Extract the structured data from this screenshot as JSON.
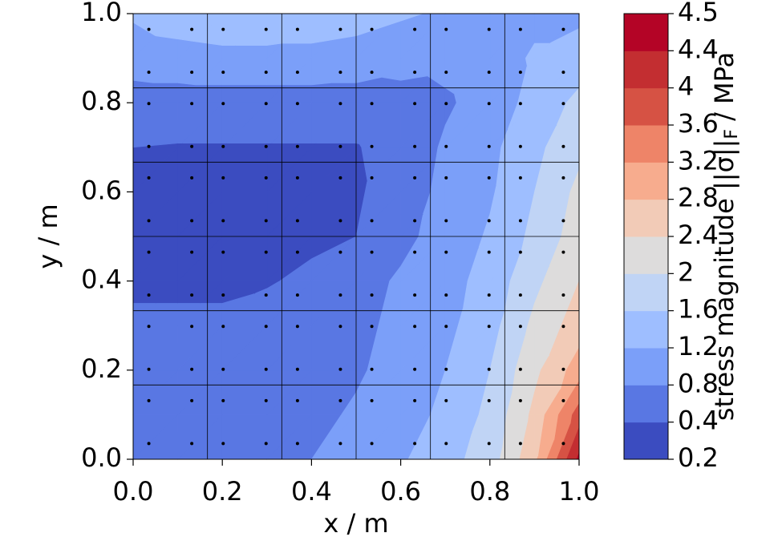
{
  "chart_data": {
    "type": "contour",
    "xlabel": "x / m",
    "ylabel": "y / m",
    "colorbar_label": "stress magnitude ||σ||",
    "colorbar_label_subscript": "F",
    "colorbar_label_unit": "/ MPa",
    "xlim": [
      0,
      1
    ],
    "ylim": [
      0,
      1
    ],
    "xticks": [
      {
        "value": 0,
        "label": "0.0"
      },
      0.2,
      0.4,
      0.6,
      0.8,
      {
        "value": 1,
        "label": "1.0"
      }
    ],
    "yticks": [
      {
        "value": 0,
        "label": "0.0"
      },
      0.2,
      0.4,
      0.6,
      0.8,
      {
        "value": 1,
        "label": "1.0"
      }
    ],
    "x": [
      0,
      0.1,
      0.2,
      0.3,
      0.4,
      0.5,
      0.6,
      0.7,
      0.8,
      0.9,
      1.0
    ],
    "y": [
      0,
      0.1,
      0.2,
      0.3,
      0.4,
      0.5,
      0.6,
      0.7,
      0.8,
      0.9,
      1.0
    ],
    "z": [
      [
        0.5,
        0.5,
        0.5,
        0.6,
        0.8,
        0.95,
        1.15,
        1.45,
        1.8,
        2.7,
        4.5
      ],
      [
        0.5,
        0.5,
        0.5,
        0.55,
        0.7,
        0.85,
        1.0,
        1.3,
        1.7,
        2.5,
        3.8
      ],
      [
        0.45,
        0.45,
        0.5,
        0.5,
        0.6,
        0.75,
        0.95,
        1.2,
        1.6,
        2.3,
        3.0
      ],
      [
        0.45,
        0.45,
        0.45,
        0.5,
        0.55,
        0.7,
        0.9,
        1.1,
        1.45,
        2.1,
        2.6
      ],
      [
        0.35,
        0.35,
        0.35,
        0.38,
        0.45,
        0.65,
        0.85,
        1.05,
        1.35,
        1.9,
        2.4
      ],
      [
        0.3,
        0.3,
        0.3,
        0.3,
        0.35,
        0.4,
        0.7,
        0.95,
        1.25,
        1.7,
        2.2
      ],
      [
        0.3,
        0.3,
        0.3,
        0.3,
        0.3,
        0.35,
        0.6,
        0.9,
        1.15,
        1.6,
        2.1
      ],
      [
        0.4,
        0.38,
        0.38,
        0.38,
        0.38,
        0.38,
        0.55,
        0.85,
        1.1,
        1.5,
        1.9
      ],
      [
        0.6,
        0.6,
        0.6,
        0.6,
        0.6,
        0.6,
        0.65,
        0.75,
        0.95,
        1.35,
        1.7
      ],
      [
        1.0,
        1.05,
        1.1,
        1.1,
        1.1,
        1.05,
        0.95,
        0.9,
        1.0,
        1.25,
        1.4
      ],
      [
        1.25,
        1.4,
        1.45,
        1.45,
        1.4,
        1.35,
        1.25,
        1.15,
        1.1,
        1.1,
        1.1
      ]
    ],
    "levels": [
      0.2,
      0.4,
      0.8,
      1.2,
      1.6,
      2,
      2.4,
      2.8,
      3.2,
      3.6,
      4,
      4.4,
      4.5
    ],
    "colors": [
      "#3b4cc0",
      "#5977e3",
      "#7b9ff9",
      "#9ebeff",
      "#c0d4f5",
      "#dddcdc",
      "#f2cbb7",
      "#f7ac8e",
      "#ee8468",
      "#d65244",
      "#c32e31",
      "#b40426"
    ],
    "mesh": [
      0,
      0.1667,
      0.3333,
      0.5,
      0.6667,
      0.8333,
      1.0
    ],
    "points": {
      "x": [
        0.0352,
        0.1315,
        0.2019,
        0.2981,
        0.3685,
        0.4648,
        0.5352,
        0.6315,
        0.7019,
        0.7981,
        0.8685,
        0.9648
      ],
      "y": [
        0.0352,
        0.1315,
        0.2019,
        0.2981,
        0.3685,
        0.4648,
        0.5352,
        0.6315,
        0.7019,
        0.7981,
        0.8685,
        0.9648
      ]
    }
  }
}
